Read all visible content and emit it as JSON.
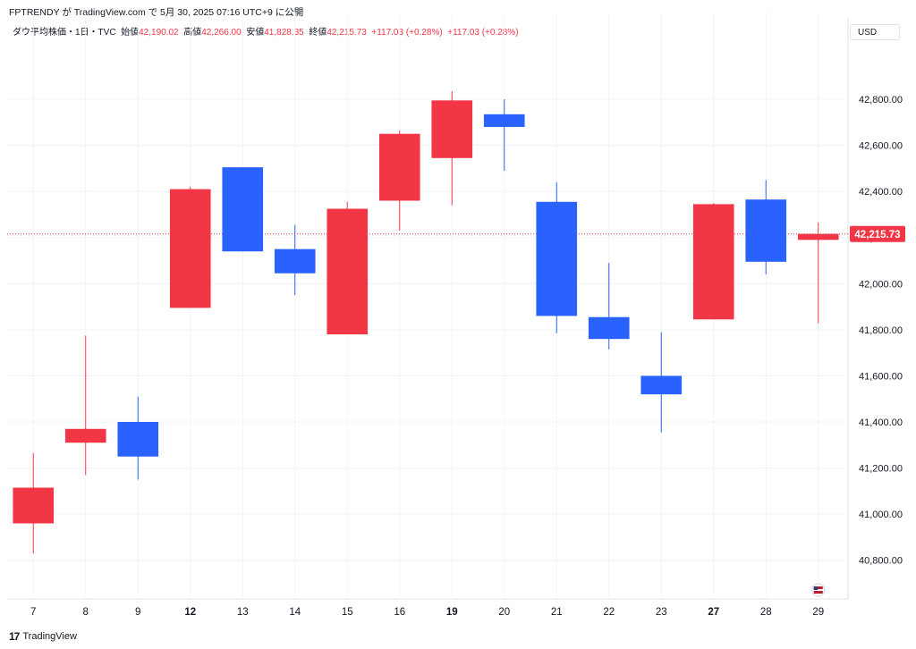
{
  "header": {
    "attribution": "FPTRENDY が TradingView.com で 5月 30, 2025 07:16 UTC+9 に公開"
  },
  "legend": {
    "symbol": "ダウ平均株価・1日・TVC",
    "open_label": "始値",
    "open_value": "42,190.02",
    "high_label": "高値",
    "high_value": "42,266.00",
    "low_label": "安値",
    "low_value": "41,828.35",
    "close_label": "終値",
    "close_value": "42,215.73",
    "change_1": "+117.03 (+0.28%)",
    "change_2": "+117.03 (+0.28%)"
  },
  "currency": "USD",
  "footer": {
    "brand": "TradingView",
    "logo_mark": "17"
  },
  "colors": {
    "up": "#f23645",
    "down": "#2962ff",
    "grid": "#f0f3fa",
    "last_price_line": "#f23645"
  },
  "chart_data": {
    "type": "candlestick",
    "x_labels": [
      "7",
      "8",
      "9",
      "12",
      "13",
      "14",
      "15",
      "16",
      "19",
      "20",
      "21",
      "22",
      "23",
      "27",
      "28",
      "29"
    ],
    "bold_labels": [
      "12",
      "19",
      "27"
    ],
    "y_ticks": [
      "40,800.00",
      "41,000.00",
      "41,200.00",
      "41,400.00",
      "41,600.00",
      "41,800.00",
      "42,000.00",
      "42,200.00",
      "42,400.00",
      "42,600.00",
      "42,800.00"
    ],
    "y_tick_values": [
      40800,
      41000,
      41200,
      41400,
      41600,
      41800,
      42000,
      42200,
      42400,
      42600,
      42800
    ],
    "ylim": [
      40640,
      43060
    ],
    "last_price": 42215.73,
    "last_price_label": "42,215.73",
    "candles": [
      {
        "date": "7",
        "open": 40960,
        "high": 41265,
        "low": 40830,
        "close": 41115,
        "color": "up"
      },
      {
        "date": "8",
        "open": 41310,
        "high": 41775,
        "low": 41170,
        "close": 41370,
        "color": "up"
      },
      {
        "date": "9",
        "open": 41400,
        "high": 41510,
        "low": 41150,
        "close": 41250,
        "color": "down"
      },
      {
        "date": "12",
        "open": 41895,
        "high": 42420,
        "low": 41895,
        "close": 42410,
        "color": "up"
      },
      {
        "date": "13",
        "open": 42505,
        "high": 42505,
        "low": 42140,
        "close": 42140,
        "color": "down"
      },
      {
        "date": "14",
        "open": 42150,
        "high": 42255,
        "low": 41950,
        "close": 42045,
        "color": "down"
      },
      {
        "date": "15",
        "open": 41780,
        "high": 42355,
        "low": 41780,
        "close": 42325,
        "color": "up"
      },
      {
        "date": "16",
        "open": 42360,
        "high": 42665,
        "low": 42230,
        "close": 42650,
        "color": "up"
      },
      {
        "date": "19",
        "open": 42545,
        "high": 42835,
        "low": 42340,
        "close": 42795,
        "color": "up"
      },
      {
        "date": "20",
        "open": 42735,
        "high": 42800,
        "low": 42490,
        "close": 42680,
        "color": "down"
      },
      {
        "date": "21",
        "open": 42355,
        "high": 42440,
        "low": 41785,
        "close": 41860,
        "color": "down"
      },
      {
        "date": "22",
        "open": 41855,
        "high": 42090,
        "low": 41715,
        "close": 41760,
        "color": "down"
      },
      {
        "date": "23",
        "open": 41600,
        "high": 41790,
        "low": 41355,
        "close": 41520,
        "color": "down"
      },
      {
        "date": "27",
        "open": 41845,
        "high": 42350,
        "low": 41845,
        "close": 42345,
        "color": "up"
      },
      {
        "date": "28",
        "open": 42365,
        "high": 42450,
        "low": 42040,
        "close": 42095,
        "color": "down"
      },
      {
        "date": "29",
        "open": 42190,
        "high": 42266,
        "low": 41828.35,
        "close": 42215.73,
        "color": "up"
      }
    ]
  }
}
